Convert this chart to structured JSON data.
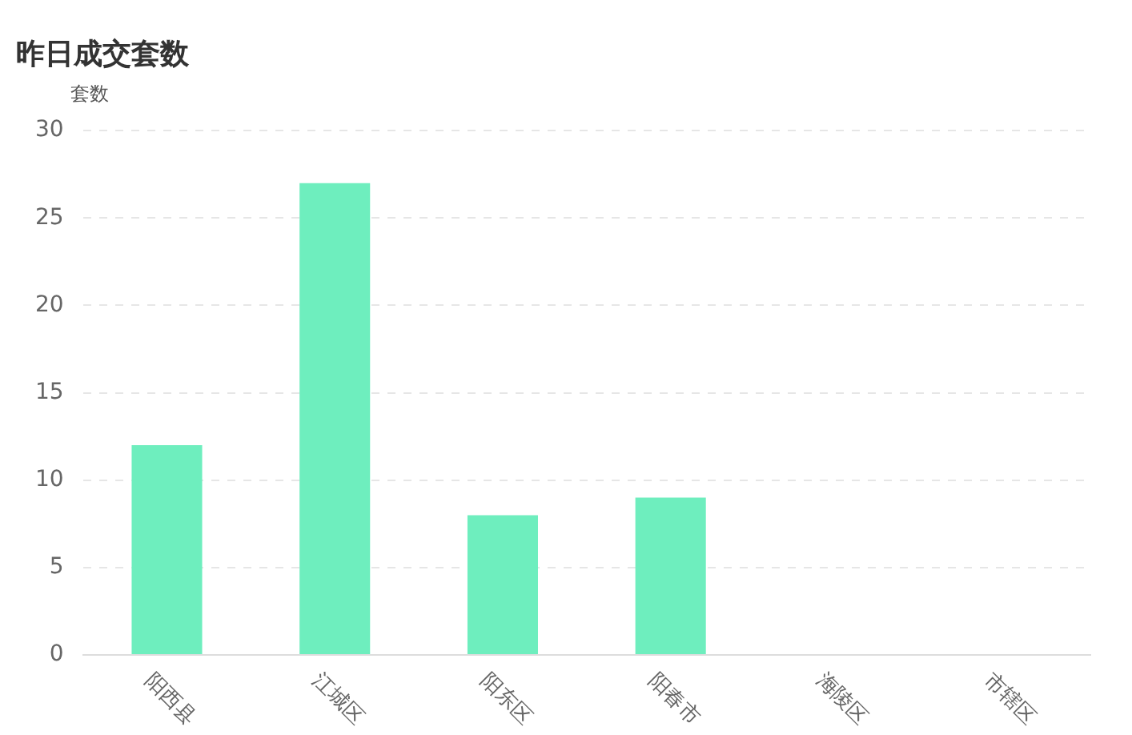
{
  "chart_data": {
    "type": "bar",
    "title": "昨日成交套数",
    "ylabel": "套数",
    "categories": [
      "阳西县",
      "江城区",
      "阳东区",
      "阳春市",
      "海陵区",
      "市辖区"
    ],
    "values": [
      12,
      27,
      8,
      9,
      0,
      0
    ],
    "color": "#6eeebe",
    "ylim": [
      0,
      30
    ],
    "yticks": [
      0,
      5,
      10,
      15,
      20,
      25,
      30
    ],
    "grid": "y",
    "legend": false
  }
}
